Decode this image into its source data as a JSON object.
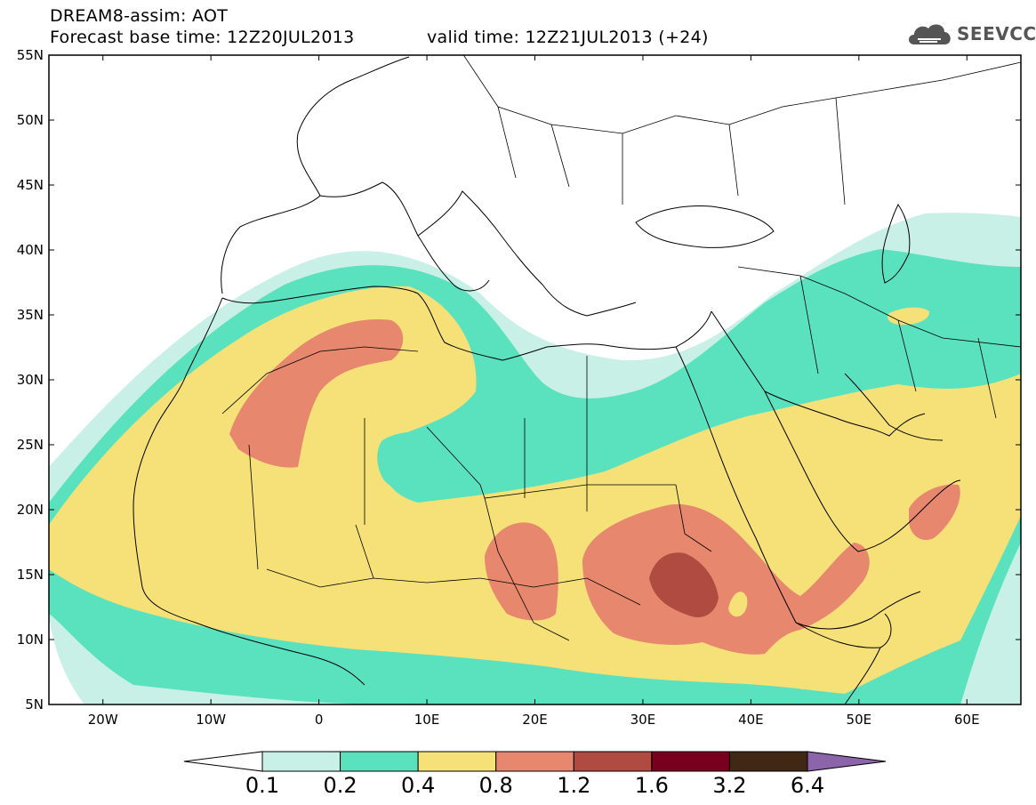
{
  "header": {
    "line1": "DREAM8-assim: AOT",
    "line2": "Forecast base time: 12Z20JUL2013",
    "line3": "valid time: 12Z21JUL2013 (+24)",
    "logo_text": "SEEVCCC",
    "logo_icon": "cloud-icon"
  },
  "map": {
    "lon_range": [
      -25,
      65
    ],
    "lat_range": [
      5,
      55
    ],
    "lat_ticks": [
      "55N",
      "50N",
      "45N",
      "40N",
      "35N",
      "30N",
      "25N",
      "20N",
      "15N",
      "10N",
      "5N"
    ],
    "lon_ticks": [
      "20W",
      "10W",
      "0",
      "10E",
      "20E",
      "30E",
      "40E",
      "50E",
      "60E"
    ]
  },
  "colorbar": {
    "colors": [
      "#ffffff",
      "#c8f0e6",
      "#5ae1be",
      "#f5e178",
      "#e6876e",
      "#af4b41",
      "#78001e",
      "#412814",
      "#8c64aa"
    ],
    "labels": [
      "0.1",
      "0.2",
      "0.4",
      "0.8",
      "1.2",
      "1.6",
      "3.2",
      "6.4"
    ]
  }
}
